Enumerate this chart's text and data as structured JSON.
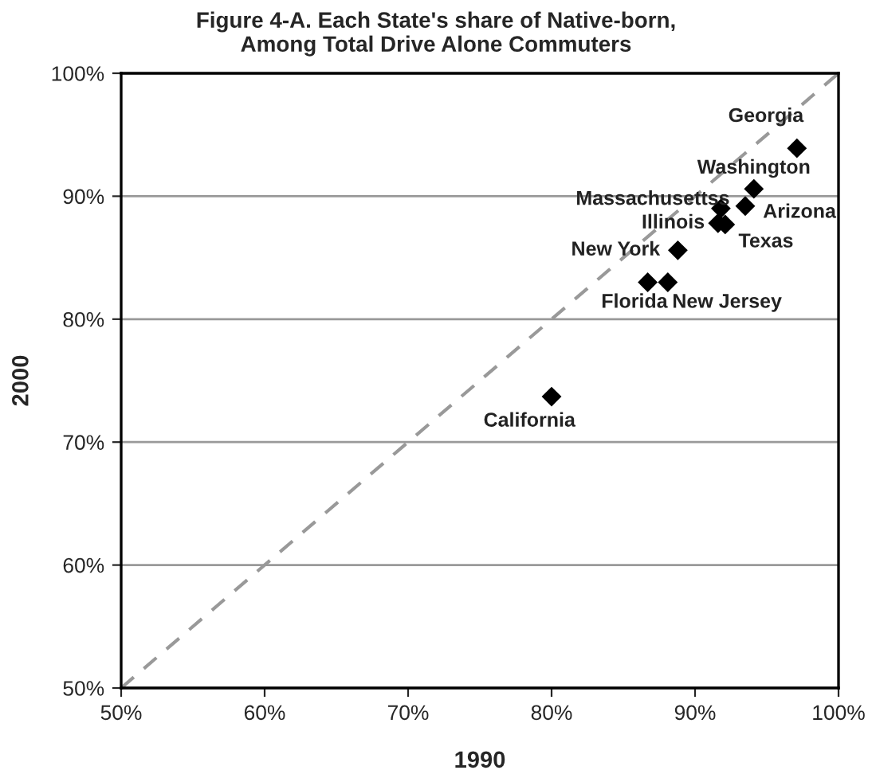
{
  "chart_data": {
    "type": "scatter",
    "title": "Figure 4-A. Each State's share of Native-born,\nAmong Total Drive Alone Commuters",
    "xlabel": "1990",
    "ylabel": "2000",
    "xlim": [
      50,
      100
    ],
    "ylim": [
      50,
      100
    ],
    "xticks": [
      {
        "value": 50,
        "label": "50%"
      },
      {
        "value": 60,
        "label": "60%"
      },
      {
        "value": 70,
        "label": "70%"
      },
      {
        "value": 80,
        "label": "80%"
      },
      {
        "value": 90,
        "label": "90%"
      },
      {
        "value": 100,
        "label": "100%"
      }
    ],
    "yticks": [
      {
        "value": 50,
        "label": "50%"
      },
      {
        "value": 60,
        "label": "60%"
      },
      {
        "value": 70,
        "label": "70%"
      },
      {
        "value": 80,
        "label": "80%"
      },
      {
        "value": 90,
        "label": "90%"
      },
      {
        "value": 100,
        "label": "100%"
      }
    ],
    "grid": "y",
    "legend": false,
    "series": [
      {
        "color": "#000000",
        "marker": "diamond",
        "x": [
          97.1,
          94.1,
          93.5,
          91.8,
          91.6,
          92.1,
          88.8,
          86.7,
          88.1,
          80.0
        ],
        "values": [
          93.9,
          90.6,
          89.2,
          89.0,
          87.8,
          87.7,
          85.6,
          83.0,
          83.0,
          73.7
        ]
      },
      {
        "type": "line",
        "color": "#999999",
        "line_style": "dashed",
        "marker": "none",
        "x": [
          50,
          100
        ],
        "values": [
          50,
          100
        ]
      }
    ],
    "annotations": [
      {
        "text": "Georgia",
        "x": 97.1,
        "y": 93.9
      },
      {
        "text": "Washington",
        "x": 94.1,
        "y": 90.6
      },
      {
        "text": "Arizona",
        "x": 93.5,
        "y": 89.2
      },
      {
        "text": "Massachusettss",
        "x": 91.8,
        "y": 89.0
      },
      {
        "text": "Illinois",
        "x": 91.6,
        "y": 87.8
      },
      {
        "text": "Texas",
        "x": 92.1,
        "y": 87.7
      },
      {
        "text": "New York",
        "x": 88.8,
        "y": 85.6
      },
      {
        "text": "Florida",
        "x": 86.7,
        "y": 83.0
      },
      {
        "text": "New Jersey",
        "x": 88.1,
        "y": 83.0
      },
      {
        "text": "California",
        "x": 80.0,
        "y": 73.7
      }
    ]
  }
}
